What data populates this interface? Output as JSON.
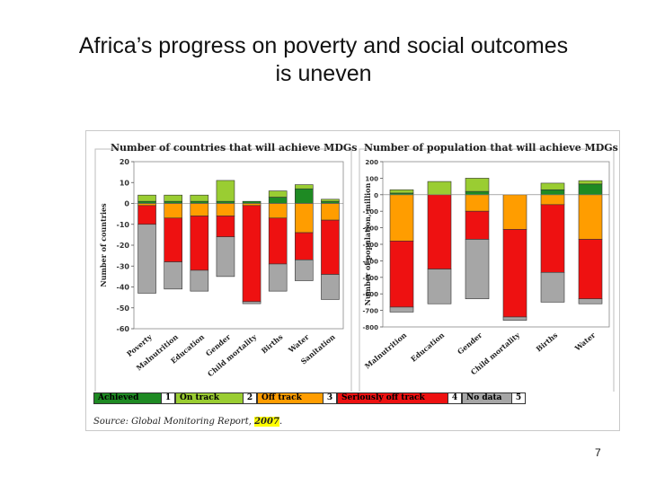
{
  "slide": {
    "title_line1": "Africa’s progress on poverty and social outcomes",
    "title_line2": "is uneven",
    "page_number": "7"
  },
  "source": {
    "prefix": "Source",
    "text": ": Global Monitoring Report, ",
    "year": "2007",
    "suffix": "."
  },
  "colors": {
    "achieved": "#1e8a23",
    "on_track": "#9acd32",
    "off_track": "#ff9d00",
    "seriously_off_track": "#ee1111",
    "no_data": "#a6a6a6"
  },
  "legend": [
    {
      "label": "Achieved",
      "code": "1",
      "color": "#1e8a23"
    },
    {
      "label": "On track",
      "code": "2",
      "color": "#9acd32"
    },
    {
      "label": "Off track",
      "code": "3",
      "color": "#ff9d00"
    },
    {
      "label": "Seriously off track",
      "code": "4",
      "color": "#ee1111"
    },
    {
      "label": "No data",
      "code": "5",
      "color": "#a6a6a6"
    }
  ],
  "chart_data": [
    {
      "type": "bar",
      "stacked": true,
      "title": "Number of countries that will achieve MDGs",
      "ylabel": "Number of countries",
      "ylim": [
        -60,
        20
      ],
      "yticks": [
        20,
        10,
        0,
        -10,
        -20,
        -30,
        -40,
        -50,
        -60
      ],
      "categories": [
        "Poverty",
        "Malnutrition",
        "Education",
        "Gender",
        "Child mortality",
        "Births",
        "Water",
        "Sanitation"
      ],
      "series": [
        {
          "name": "Achieved",
          "values": [
            1,
            1,
            1,
            1,
            1,
            3,
            7,
            1
          ]
        },
        {
          "name": "On track",
          "values": [
            3,
            3,
            3,
            10,
            0,
            3,
            2,
            1
          ]
        },
        {
          "name": "Off track",
          "values": [
            -1,
            -7,
            -6,
            -6,
            -1,
            -7,
            -14,
            -8
          ]
        },
        {
          "name": "Seriously off track",
          "values": [
            -9,
            -21,
            -26,
            -10,
            -46,
            -22,
            -13,
            -26
          ]
        },
        {
          "name": "No data",
          "values": [
            -33,
            -13,
            -10,
            -19,
            -1,
            -13,
            -10,
            -12
          ]
        }
      ]
    },
    {
      "type": "bar",
      "stacked": true,
      "title": "Number of population that will achieve MDGs",
      "ylabel": "Number of population, million",
      "ylim": [
        -800,
        200
      ],
      "yticks": [
        200,
        100,
        0,
        -100,
        -200,
        -300,
        -400,
        -500,
        -600,
        -700,
        -800
      ],
      "categories": [
        "Malnutrition",
        "Education",
        "Gender",
        "Child mortality",
        "Births",
        "Water"
      ],
      "series": [
        {
          "name": "Achieved",
          "values": [
            10,
            0,
            20,
            0,
            30,
            65
          ]
        },
        {
          "name": "On track",
          "values": [
            20,
            80,
            80,
            0,
            40,
            20
          ]
        },
        {
          "name": "Off track",
          "values": [
            -280,
            0,
            -100,
            -210,
            -60,
            -270
          ]
        },
        {
          "name": "Seriously off track",
          "values": [
            -400,
            -450,
            -170,
            -530,
            -410,
            -360
          ]
        },
        {
          "name": "No data",
          "values": [
            -30,
            -210,
            -360,
            -20,
            -180,
            -30
          ]
        }
      ]
    }
  ]
}
